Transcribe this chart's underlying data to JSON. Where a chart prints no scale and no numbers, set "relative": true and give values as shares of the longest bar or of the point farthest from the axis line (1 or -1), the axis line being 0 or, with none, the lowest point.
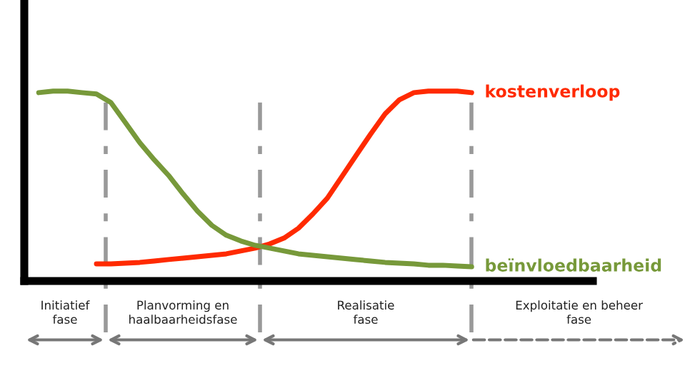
{
  "chart_data": {
    "type": "line",
    "relative": true,
    "categories": [
      null,
      null,
      null,
      null,
      null,
      null,
      null,
      null,
      null,
      null,
      null,
      null,
      null,
      null,
      null,
      null,
      null,
      null,
      null,
      null,
      null,
      null,
      null,
      null,
      null,
      null,
      null,
      null,
      null,
      null,
      null
    ],
    "series": [
      {
        "name": "kostenverloop",
        "color": "#ff2a00",
        "values": [
          null,
          null,
          null,
          null,
          0.09,
          0.09,
          0.094,
          0.098,
          0.105,
          0.113,
          0.12,
          0.128,
          0.135,
          0.143,
          0.158,
          0.173,
          0.195,
          0.226,
          0.278,
          0.353,
          0.436,
          0.549,
          0.662,
          0.774,
          0.88,
          0.955,
          0.992,
          1.0,
          1.0,
          1.0,
          0.992
        ]
      },
      {
        "name": "beïnvloedbaarheid",
        "color": "#77993a",
        "values": [
          0.992,
          1.0,
          1.0,
          0.992,
          0.985,
          0.94,
          0.835,
          0.729,
          0.639,
          0.556,
          0.459,
          0.368,
          0.293,
          0.241,
          0.211,
          0.188,
          0.173,
          0.158,
          0.143,
          0.135,
          0.128,
          0.12,
          0.113,
          0.105,
          0.098,
          0.094,
          0.09,
          0.083,
          0.083,
          0.079,
          0.075
        ]
      }
    ],
    "annotations": [
      "Initiatief\nfase",
      "Planvorming en\nhaalbaarheidsfase",
      "Realisatie\nfase",
      "Exploitatie en beheer\nfase"
    ],
    "legend": false,
    "marker": "none",
    "line_style": "solid"
  }
}
